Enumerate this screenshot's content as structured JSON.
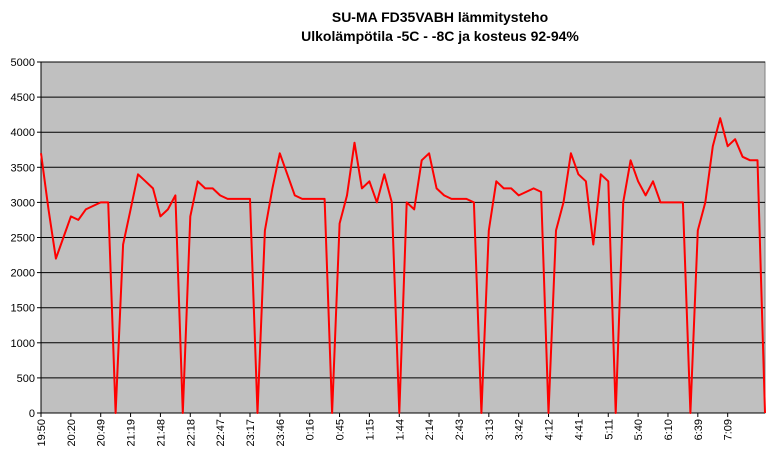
{
  "chart_data": {
    "type": "line",
    "title": "SU-MA FD35VABH lämmitysteho",
    "subtitle": "Ulkolämpötila  -5C - -8C ja kosteus 92-94%",
    "categories": [
      "19:50",
      null,
      null,
      null,
      "20:20",
      null,
      null,
      null,
      "20:49",
      null,
      null,
      null,
      "21:19",
      null,
      null,
      null,
      "21:48",
      null,
      null,
      null,
      "22:18",
      null,
      null,
      null,
      "22:47",
      null,
      null,
      null,
      "23:17",
      null,
      null,
      null,
      "23:46",
      null,
      null,
      null,
      "0:16",
      null,
      null,
      null,
      "0:45",
      null,
      null,
      null,
      "1:15",
      null,
      null,
      null,
      "1:44",
      null,
      null,
      null,
      "2:14",
      null,
      null,
      null,
      "2:43",
      null,
      null,
      null,
      "3:13",
      null,
      null,
      null,
      "3:42",
      null,
      null,
      null,
      "4:12",
      null,
      null,
      null,
      "4:41",
      null,
      null,
      null,
      "5:11",
      null,
      null,
      null,
      "5:40",
      null,
      null,
      null,
      "6:10",
      null,
      null,
      null,
      "6:39",
      null,
      null,
      null,
      "7:09",
      null,
      null,
      null,
      null,
      null
    ],
    "values": [
      3700,
      2900,
      2200,
      2500,
      2800,
      2750,
      2900,
      2950,
      3000,
      3000,
      0,
      2400,
      2900,
      3400,
      3300,
      3200,
      2800,
      2900,
      3100,
      0,
      2800,
      3300,
      3200,
      3200,
      3100,
      3050,
      3050,
      3050,
      3050,
      0,
      2600,
      3200,
      3700,
      3400,
      3100,
      3050,
      3050,
      3050,
      3050,
      0,
      2700,
      3100,
      3850,
      3200,
      3300,
      3000,
      3400,
      3000,
      0,
      3000,
      2900,
      3600,
      3700,
      3200,
      3100,
      3050,
      3050,
      3050,
      3000,
      0,
      2600,
      3300,
      3200,
      3200,
      3100,
      3150,
      3200,
      3150,
      0,
      2600,
      3000,
      3700,
      3400,
      3300,
      2400,
      3400,
      3300,
      0,
      3000,
      3600,
      3300,
      3100,
      3300,
      3000,
      3000,
      3000,
      3000,
      0,
      2600,
      3000,
      3800,
      4200,
      3800,
      3900,
      3650,
      3600,
      3600,
      0
    ],
    "color": "#ff0000",
    "ylim": [
      0,
      5000
    ],
    "yticks": [
      0,
      500,
      1000,
      1500,
      2000,
      2500,
      3000,
      3500,
      4000,
      4500,
      5000
    ],
    "grid": true,
    "plot_background": "#c0c0c0"
  }
}
